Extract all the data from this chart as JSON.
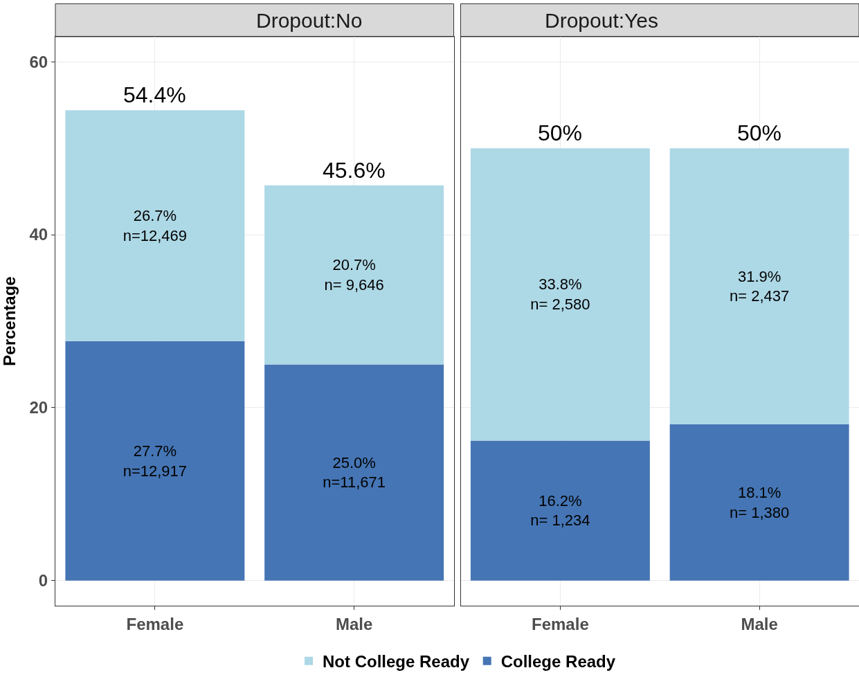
{
  "chart_data": [
    {
      "type": "bar",
      "title": "Dropout:No",
      "ylabel": "Percentage",
      "categories": [
        "Female",
        "Male"
      ],
      "stacked": true,
      "series": [
        {
          "name": "College Ready",
          "color": "#4575b4",
          "values": [
            27.7,
            25.0
          ],
          "value_labels": [
            "27.7%\nn=12,917",
            "25.0%\nn=11,671"
          ]
        },
        {
          "name": "Not College Ready",
          "color": "#add8e6",
          "values": [
            26.7,
            20.7
          ],
          "value_labels": [
            "26.7%\nn=12,469",
            "20.7%\nn= 9,646"
          ]
        }
      ],
      "totals": [
        "54.4%",
        "45.6%"
      ],
      "ylim": [
        -2.9,
        62.9
      ],
      "yticks": [
        0,
        20,
        40,
        60
      ],
      "grid": true,
      "legend": "bottom"
    },
    {
      "type": "bar",
      "title": "Dropout:Yes",
      "categories": [
        "Female",
        "Male"
      ],
      "stacked": true,
      "series": [
        {
          "color": "#4575b4",
          "values": [
            16.2,
            18.1
          ],
          "value_labels": [
            "16.2%\nn= 1,234",
            "18.1%\nn= 1,380"
          ]
        },
        {
          "color": "#add8e6",
          "values": [
            33.8,
            31.9
          ],
          "value_labels": [
            "33.8%\nn= 2,580",
            "31.9%\nn= 2,437"
          ]
        }
      ],
      "totals": [
        "50%",
        "50%"
      ],
      "ylim": [
        -2.9,
        62.9
      ],
      "yticks": [
        0,
        20,
        40,
        60
      ],
      "grid": true,
      "tick_labels": "x"
    }
  ]
}
